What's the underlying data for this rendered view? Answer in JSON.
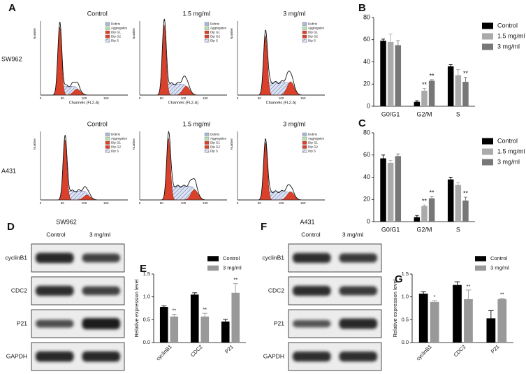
{
  "panels": [
    "A",
    "B",
    "C",
    "D",
    "E",
    "F",
    "G"
  ],
  "flow_cytometry": {
    "columns": [
      "Control",
      "1.5 mg/ml",
      "3 mg/ml"
    ],
    "cell_lines": [
      "SW962",
      "A431"
    ],
    "legend": [
      "Debris",
      "Aggregates",
      "Dip G1",
      "Dip G2",
      "Dip S"
    ],
    "x_label": "Channels (FL2-A)",
    "y_label": "Number",
    "x_tick_labels": [
      "0",
      "50",
      "100",
      "150"
    ]
  },
  "western_blots": [
    {
      "cell_line": "SW962",
      "columns": [
        "Control",
        "3 mg/ml"
      ],
      "proteins": [
        "cyclinB1",
        "CDC2",
        "P21",
        "GAPDH"
      ]
    },
    {
      "cell_line": "A431",
      "columns": [
        "Control",
        "3 mg/ml"
      ],
      "proteins": [
        "cyclinB1",
        "CDC2",
        "P21",
        "GAPDH"
      ]
    }
  ],
  "chart_data": [
    {
      "type": "bar",
      "categories": [
        "G0/G1",
        "G2/M",
        "S"
      ],
      "series": [
        {
          "name": "Control",
          "color": "#000000",
          "values": [
            59,
            4,
            36
          ],
          "errors": [
            1.5,
            1,
            1.5
          ]
        },
        {
          "name": "1.5 mg/ml",
          "color": "#aaaaaa",
          "values": [
            58,
            14,
            28
          ],
          "errors": [
            7,
            2,
            5
          ],
          "significance": [
            null,
            "**",
            null
          ]
        },
        {
          "name": "3 mg/ml",
          "color": "#777777",
          "values": [
            55,
            23,
            22
          ],
          "errors": [
            4,
            1,
            4
          ],
          "significance": [
            null,
            "**",
            "**"
          ]
        }
      ],
      "ylim": [
        0,
        80
      ],
      "yticks": [
        0,
        20,
        40,
        60,
        80
      ],
      "legend": "right"
    },
    {
      "type": "bar",
      "categories": [
        "G0/G1",
        "G2/M",
        "S"
      ],
      "series": [
        {
          "name": "Control",
          "color": "#000000",
          "values": [
            57,
            4,
            38
          ],
          "errors": [
            3,
            1.5,
            2
          ]
        },
        {
          "name": "1.5 mg/ml",
          "color": "#aaaaaa",
          "values": [
            53,
            14,
            33
          ],
          "errors": [
            2,
            1,
            2
          ],
          "significance": [
            null,
            "**",
            null
          ]
        },
        {
          "name": "3 mg/ml",
          "color": "#777777",
          "values": [
            59,
            21,
            19
          ],
          "errors": [
            2,
            1.5,
            3
          ],
          "significance": [
            null,
            "**",
            "**"
          ]
        }
      ],
      "ylim": [
        0,
        80
      ],
      "yticks": [
        0,
        20,
        40,
        60,
        80
      ],
      "legend": "right"
    },
    {
      "type": "bar",
      "categories": [
        "cyclinB1",
        "CDC2",
        "P21"
      ],
      "series": [
        {
          "name": "Control",
          "color": "#000000",
          "values": [
            0.78,
            1.05,
            0.46
          ],
          "errors": [
            0.02,
            0.04,
            0.05
          ]
        },
        {
          "name": "3 mg/ml",
          "color": "#999999",
          "values": [
            0.57,
            0.57,
            1.09
          ],
          "errors": [
            0.05,
            0.07,
            0.2
          ],
          "significance": [
            "**",
            "**",
            "**"
          ]
        }
      ],
      "ylabel": "Relative expression level",
      "ylim": [
        0,
        1.5
      ],
      "yticks": [
        {
          "value": 0,
          "label": "0.0"
        },
        {
          "value": 0.5,
          "label": "0.5"
        },
        {
          "value": 1,
          "label": "1.0"
        },
        {
          "value": 1.5,
          "label": "1.5"
        }
      ],
      "category_label_rotation": -45,
      "legend": "upper right"
    },
    {
      "type": "bar",
      "categories": [
        "cyclinB1",
        "CDC2",
        "P21"
      ],
      "series": [
        {
          "name": "Control",
          "color": "#000000",
          "values": [
            1.07,
            1.26,
            0.53
          ],
          "errors": [
            0.04,
            0.07,
            0.17
          ]
        },
        {
          "name": "3 mg/ml",
          "color": "#999999",
          "values": [
            0.89,
            0.95,
            0.95
          ],
          "errors": [
            0.03,
            0.2,
            0.02
          ],
          "significance": [
            "*",
            "**",
            "**"
          ]
        }
      ],
      "ylabel": "Relative expression level",
      "ylim": [
        0,
        1.5
      ],
      "yticks": [
        {
          "value": 0,
          "label": "0.0"
        },
        {
          "value": 0.5,
          "label": "0.5"
        },
        {
          "value": 1,
          "label": "1.0"
        },
        {
          "value": 1.5,
          "label": "1.5"
        }
      ],
      "category_label_rotation": -45,
      "legend": "upper right"
    }
  ]
}
